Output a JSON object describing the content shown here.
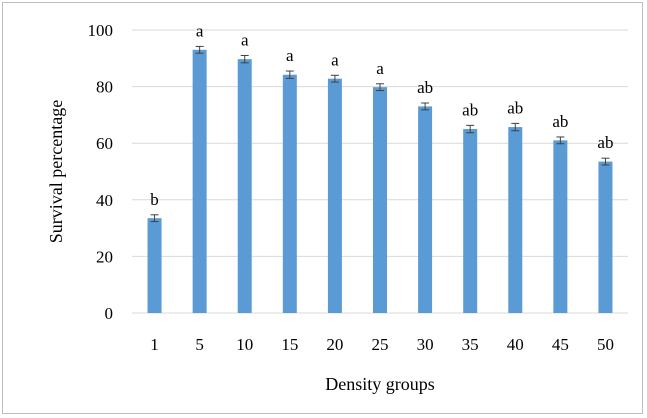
{
  "chart_data": {
    "type": "bar",
    "title": "",
    "xlabel": "Density groups",
    "ylabel": "Survival percentage",
    "categories": [
      "1",
      "5",
      "10",
      "15",
      "20",
      "25",
      "30",
      "35",
      "40",
      "45",
      "50"
    ],
    "values": [
      33.5,
      93.0,
      89.7,
      84.2,
      82.8,
      79.8,
      73.0,
      65.0,
      65.7,
      61.0,
      53.5
    ],
    "errors": [
      1.2,
      1.2,
      1.3,
      1.3,
      1.2,
      1.2,
      1.2,
      1.3,
      1.3,
      1.2,
      1.2
    ],
    "significance_labels": [
      "b",
      "a",
      "a",
      "a",
      "a",
      "a",
      "ab",
      "ab",
      "ab",
      "ab",
      "ab"
    ],
    "ylim": [
      0,
      100
    ],
    "yticks": [
      0,
      20,
      40,
      60,
      80,
      100
    ],
    "grid": true,
    "legend": "none",
    "colors": {
      "bar": "#5b9bd5",
      "grid": "#d9d9d9",
      "error_bar": "#404040"
    }
  }
}
